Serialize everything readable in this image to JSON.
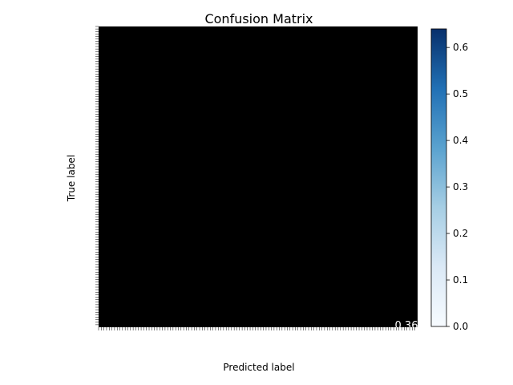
{
  "chart_data": {
    "type": "heatmap",
    "title": "Confusion Matrix",
    "xlabel": "Predicted label",
    "ylabel": "True label",
    "colormap": "Blues",
    "colorbar": {
      "min": 0.0,
      "max": 0.64,
      "ticks": [
        "0.0",
        "0.1",
        "0.2",
        "0.3",
        "0.4",
        "0.5",
        "0.6"
      ],
      "tick_values": [
        0.0,
        0.1,
        0.2,
        0.3,
        0.4,
        0.5,
        0.6
      ]
    },
    "matrix_note_values": [
      "0.36"
    ],
    "visible_cell_values": [
      {
        "row": "lower-right",
        "value": "0.36"
      }
    ],
    "cell_fill": "#000000"
  }
}
